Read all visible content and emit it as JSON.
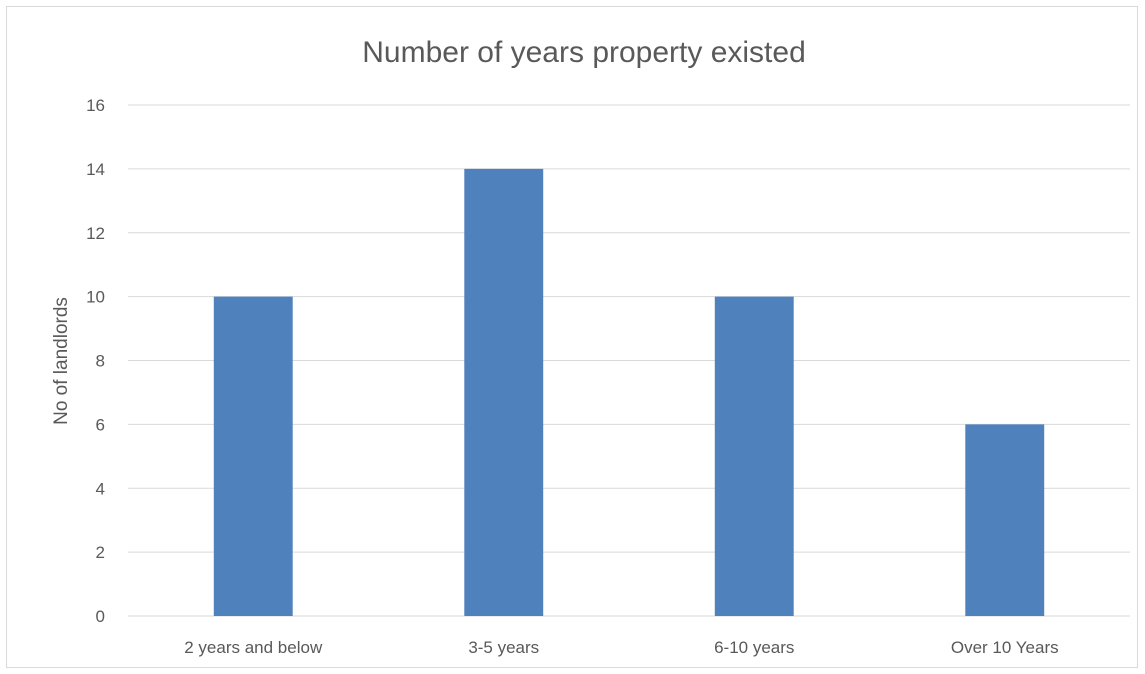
{
  "chart_data": {
    "type": "bar",
    "title": "Number of years property existed",
    "xlabel": "",
    "ylabel": "No of landlords",
    "categories": [
      "2 years and below",
      "3-5 years",
      "6-10 years",
      "Over 10 Years"
    ],
    "values": [
      10,
      14,
      10,
      6
    ],
    "ylim": [
      0,
      16
    ],
    "yticks": [
      0,
      2,
      4,
      6,
      8,
      10,
      12,
      14,
      16
    ],
    "grid": true,
    "legend": "none",
    "bar_color": "#4f81bd",
    "grid_color": "#d9d9d9"
  }
}
